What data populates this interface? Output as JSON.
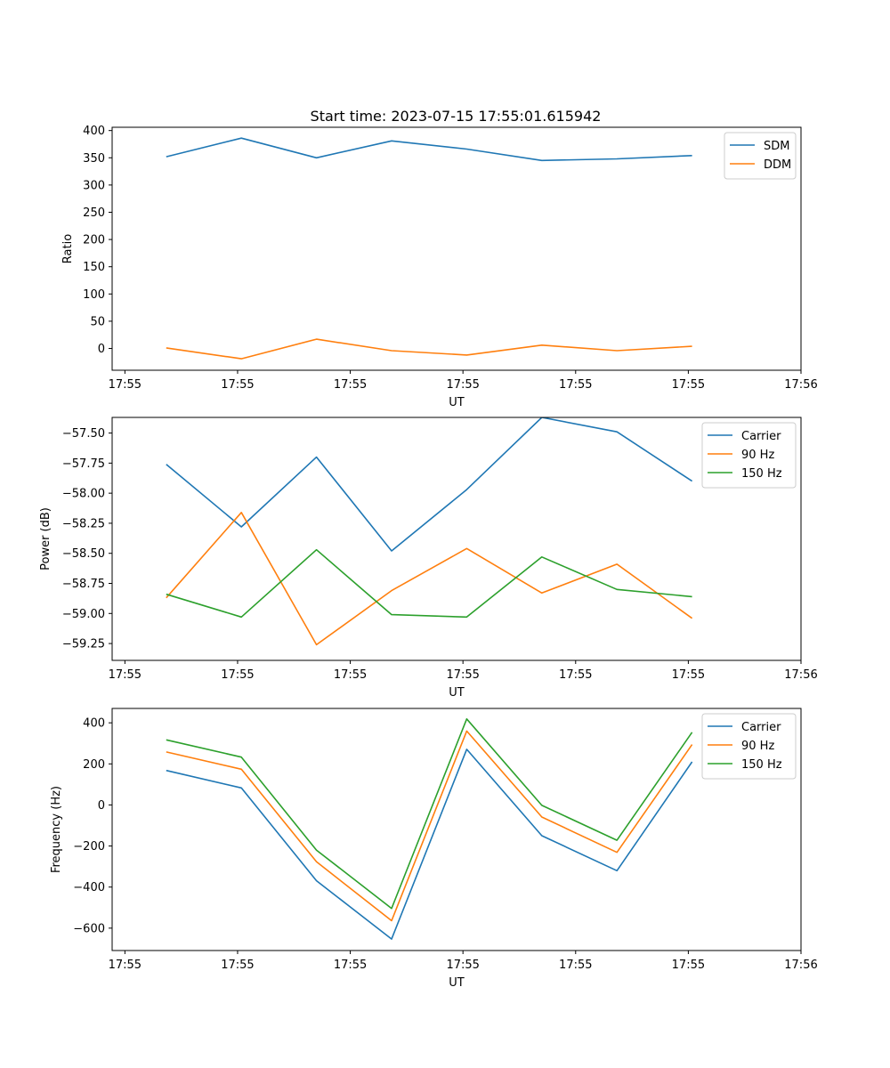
{
  "figure": {
    "title": "Start time: 2023-07-15 17:55:01.615942"
  },
  "colors": {
    "blue": "#1f77b4",
    "orange": "#ff7f0e",
    "green": "#2ca02c"
  },
  "chart_data": [
    {
      "type": "line",
      "title": "Start time: 2023-07-15 17:55:01.615942",
      "xlabel": "UT",
      "ylabel": "Ratio",
      "x": [
        1,
        2,
        3,
        4,
        5,
        6,
        7,
        8
      ],
      "xlim": [
        0.28,
        9.45
      ],
      "xticks": [
        {
          "v": 0.45,
          "label": "17:55"
        },
        {
          "v": 1.95,
          "label": "17:55"
        },
        {
          "v": 3.45,
          "label": "17:55"
        },
        {
          "v": 4.95,
          "label": "17:55"
        },
        {
          "v": 6.45,
          "label": "17:55"
        },
        {
          "v": 7.95,
          "label": "17:55"
        },
        {
          "v": 9.45,
          "label": "17:56"
        }
      ],
      "ylim": [
        -40,
        406
      ],
      "yticks": [
        0,
        50,
        100,
        150,
        200,
        250,
        300,
        350,
        400
      ],
      "ytick_labels": [
        "0",
        "50",
        "100",
        "150",
        "200",
        "250",
        "300",
        "350",
        "400"
      ],
      "legend": "top-right",
      "series": [
        {
          "name": "SDM",
          "color": "blue",
          "values": [
            352,
            386,
            350,
            381,
            366,
            345,
            348,
            354
          ]
        },
        {
          "name": "DDM",
          "color": "orange",
          "values": [
            1,
            -19,
            17,
            -4,
            -12,
            6,
            -4,
            4
          ]
        }
      ]
    },
    {
      "type": "line",
      "title": "",
      "xlabel": "UT",
      "ylabel": "Power (dB)",
      "x": [
        1,
        2,
        3,
        4,
        5,
        6,
        7,
        8
      ],
      "xlim": [
        0.28,
        9.45
      ],
      "xticks": [
        {
          "v": 0.45,
          "label": "17:55"
        },
        {
          "v": 1.95,
          "label": "17:55"
        },
        {
          "v": 3.45,
          "label": "17:55"
        },
        {
          "v": 4.95,
          "label": "17:55"
        },
        {
          "v": 6.45,
          "label": "17:55"
        },
        {
          "v": 7.95,
          "label": "17:55"
        },
        {
          "v": 9.45,
          "label": "17:56"
        }
      ],
      "ylim": [
        -59.39,
        -57.37
      ],
      "yticks": [
        -59.25,
        -59.0,
        -58.75,
        -58.5,
        -58.25,
        -58.0,
        -57.75,
        -57.5
      ],
      "ytick_labels": [
        "−59.25",
        "−59.00",
        "−58.75",
        "−58.50",
        "−58.25",
        "−58.00",
        "−57.75",
        "−57.50"
      ],
      "legend": "top-right",
      "series": [
        {
          "name": "Carrier",
          "color": "blue",
          "values": [
            -57.76,
            -58.28,
            -57.7,
            -58.48,
            -57.97,
            -57.37,
            -57.49,
            -57.9
          ]
        },
        {
          "name": "90 Hz",
          "color": "orange",
          "values": [
            -58.87,
            -58.16,
            -59.26,
            -58.81,
            -58.46,
            -58.83,
            -58.59,
            -59.04
          ]
        },
        {
          "name": "150 Hz",
          "color": "green",
          "values": [
            -58.84,
            -59.03,
            -58.47,
            -59.01,
            -59.03,
            -58.53,
            -58.8,
            -58.86
          ]
        }
      ]
    },
    {
      "type": "line",
      "title": "",
      "xlabel": "UT",
      "ylabel": "Frequency (Hz)",
      "x": [
        1,
        2,
        3,
        4,
        5,
        6,
        7,
        8
      ],
      "xlim": [
        0.28,
        9.45
      ],
      "xticks": [
        {
          "v": 0.45,
          "label": "17:55"
        },
        {
          "v": 1.95,
          "label": "17:55"
        },
        {
          "v": 3.45,
          "label": "17:55"
        },
        {
          "v": 4.95,
          "label": "17:55"
        },
        {
          "v": 6.45,
          "label": "17:55"
        },
        {
          "v": 7.95,
          "label": "17:55"
        },
        {
          "v": 9.45,
          "label": "17:56"
        }
      ],
      "ylim": [
        -709,
        470
      ],
      "yticks": [
        -600,
        -400,
        -200,
        0,
        200,
        400
      ],
      "ytick_labels": [
        "−600",
        "−400",
        "−200",
        "0",
        "200",
        "400"
      ],
      "legend": "top-right",
      "series": [
        {
          "name": "Carrier",
          "color": "blue",
          "values": [
            168,
            83,
            -369,
            -653,
            271,
            -150,
            -320,
            210
          ]
        },
        {
          "name": "90 Hz",
          "color": "orange",
          "values": [
            258,
            174,
            -277,
            -564,
            360,
            -59,
            -231,
            294
          ]
        },
        {
          "name": "150 Hz",
          "color": "green",
          "values": [
            317,
            233,
            -220,
            -504,
            419,
            -2,
            -172,
            354
          ]
        }
      ]
    }
  ]
}
